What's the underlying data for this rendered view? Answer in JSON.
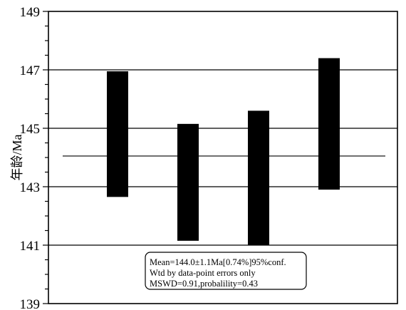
{
  "chart_data": {
    "type": "bar",
    "ylabel": "年龄/Ma",
    "ylim": [
      139,
      149
    ],
    "yticks": [
      139,
      141,
      143,
      145,
      147,
      149
    ],
    "gridlines": [
      141,
      143,
      145,
      147
    ],
    "grid": true,
    "weighted_mean": 144.05,
    "series": [
      {
        "values": [
          {
            "low": 142.65,
            "high": 146.95
          },
          {
            "low": 141.15,
            "high": 145.15
          },
          {
            "low": 141.0,
            "high": 145.6
          },
          {
            "low": 142.9,
            "high": 147.4
          }
        ]
      }
    ],
    "annotation": {
      "lines": [
        "Mean=144.0±1.1Ma[0.74%]95%conf.",
        "Wtd by data-point errors only",
        "MSWD=0.91,probalility=0.43"
      ],
      "position": "bottom-center"
    }
  }
}
